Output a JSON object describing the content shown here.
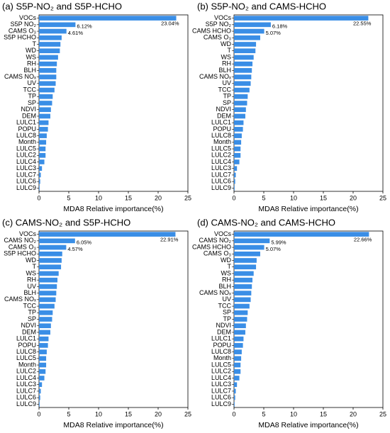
{
  "chart_data": [
    {
      "type": "bar",
      "orientation": "horizontal",
      "title": "(a) S5P-NO₂ and S5P-HCHO",
      "xlabel": "MDA8 Relative importance(%)",
      "color": "#3a8ee6",
      "categories": [
        "VOCs",
        "S5P NO₂",
        "CAMS O₃",
        "S5P HCHO",
        "T",
        "WD",
        "WS",
        "RH",
        "BLH",
        "CAMS NOₓ",
        "UV",
        "TCC",
        "TP",
        "SP",
        "NDVI",
        "DEM",
        "LULC1",
        "POPU",
        "LULC8",
        "Month",
        "LULC5",
        "LULC2",
        "LULC4",
        "LULC3",
        "LULC7",
        "LULC6",
        "LULC9"
      ],
      "values": [
        23.04,
        6.12,
        4.61,
        3.8,
        3.6,
        3.5,
        3.2,
        3.0,
        2.9,
        2.9,
        2.8,
        2.6,
        2.3,
        2.2,
        2.0,
        1.9,
        1.6,
        1.5,
        1.3,
        1.2,
        1.1,
        1.1,
        0.9,
        0.5,
        0.3,
        0.2,
        0.1
      ],
      "value_labels": [
        "23.04%",
        "6.12%",
        "4.61%",
        null,
        null,
        null,
        null,
        null,
        null,
        null,
        null,
        null,
        null,
        null,
        null,
        null,
        null,
        null,
        null,
        null,
        null,
        null,
        null,
        null,
        null,
        null,
        null
      ],
      "xlim": [
        0,
        25
      ],
      "xticks": [
        0,
        5,
        10,
        15,
        20,
        25
      ],
      "grid": false
    },
    {
      "type": "bar",
      "orientation": "horizontal",
      "title": "(b) S5P-NO₂ and CAMS-HCHO",
      "xlabel": "MDA8 Relative importance(%)",
      "color": "#3a8ee6",
      "categories": [
        "VOCs",
        "S5P NO₂",
        "CAMS HCHO",
        "CAMS O₃",
        "WD",
        "T",
        "WS",
        "RH",
        "BLH",
        "CAMS NOₓ",
        "UV",
        "TCC",
        "TP",
        "SP",
        "NDVI",
        "DEM",
        "LULC1",
        "POPU",
        "LULC8",
        "Month",
        "LULC5",
        "LULC2",
        "LULC4",
        "LULC3",
        "LULC7",
        "LULC6",
        "LULC9"
      ],
      "values": [
        22.55,
        6.18,
        5.07,
        4.4,
        3.7,
        3.6,
        3.3,
        3.1,
        3.0,
        2.9,
        2.8,
        2.6,
        2.3,
        2.2,
        2.0,
        1.9,
        1.6,
        1.5,
        1.3,
        1.2,
        1.1,
        1.1,
        0.9,
        0.5,
        0.3,
        0.2,
        0.1
      ],
      "value_labels": [
        "22.55%",
        "6.18%",
        "5.07%",
        null,
        null,
        null,
        null,
        null,
        null,
        null,
        null,
        null,
        null,
        null,
        null,
        null,
        null,
        null,
        null,
        null,
        null,
        null,
        null,
        null,
        null,
        null,
        null
      ],
      "xlim": [
        0,
        25
      ],
      "xticks": [
        0,
        5,
        10,
        15,
        20,
        25
      ],
      "grid": false
    },
    {
      "type": "bar",
      "orientation": "horizontal",
      "title": "(c) CAMS-NO₂ and S5P-HCHO",
      "xlabel": "MDA8 Relative importance(%)",
      "color": "#3a8ee6",
      "categories": [
        "VOCs",
        "CAMS NO₂",
        "CAMS O₃",
        "S5P HCHO",
        "WD",
        "T",
        "WS",
        "RH",
        "UV",
        "BLH",
        "CAMS NOₓ",
        "TCC",
        "TP",
        "SP",
        "NDVI",
        "DEM",
        "LULC1",
        "POPU",
        "LULC8",
        "LULC5",
        "Month",
        "LULC2",
        "LULC4",
        "LULC3",
        "LULC7",
        "LULC6",
        "LULC9"
      ],
      "values": [
        22.91,
        6.05,
        4.57,
        3.9,
        3.8,
        3.7,
        3.3,
        3.1,
        3.0,
        2.9,
        2.8,
        2.6,
        2.3,
        2.2,
        2.0,
        1.9,
        1.6,
        1.5,
        1.3,
        1.2,
        1.2,
        1.1,
        0.9,
        0.5,
        0.3,
        0.2,
        0.1
      ],
      "value_labels": [
        "22.91%",
        "6.05%",
        "4.57%",
        null,
        null,
        null,
        null,
        null,
        null,
        null,
        null,
        null,
        null,
        null,
        null,
        null,
        null,
        null,
        null,
        null,
        null,
        null,
        null,
        null,
        null,
        null,
        null
      ],
      "xlim": [
        0,
        25
      ],
      "xticks": [
        0,
        5,
        10,
        15,
        20,
        25
      ],
      "grid": false
    },
    {
      "type": "bar",
      "orientation": "horizontal",
      "title": "(d) CAMS-NO₂ and CAMS-HCHO",
      "xlabel": "MDA8 Relative importance(%)",
      "color": "#3a8ee6",
      "categories": [
        "VOCs",
        "CAMS NO₂",
        "CAMS HCHO",
        "CAMS O₃",
        "WD",
        "T",
        "WS",
        "RH",
        "BLH",
        "CAMS NOₓ",
        "UV",
        "TCC",
        "SP",
        "TP",
        "NDVI",
        "DEM",
        "LULC1",
        "POPU",
        "LULC8",
        "Month",
        "LULC5",
        "LULC2",
        "LULC4",
        "LULC3",
        "LULC7",
        "LULC6",
        "LULC9"
      ],
      "values": [
        22.66,
        5.99,
        5.07,
        4.4,
        3.8,
        3.7,
        3.3,
        3.1,
        3.0,
        2.9,
        2.8,
        2.6,
        2.3,
        2.2,
        2.0,
        1.9,
        1.6,
        1.5,
        1.3,
        1.2,
        1.1,
        1.1,
        0.9,
        0.5,
        0.3,
        0.2,
        0.1
      ],
      "value_labels": [
        "22.66%",
        "5.99%",
        "5.07%",
        null,
        null,
        null,
        null,
        null,
        null,
        null,
        null,
        null,
        null,
        null,
        null,
        null,
        null,
        null,
        null,
        null,
        null,
        null,
        null,
        null,
        null,
        null,
        null
      ],
      "xlim": [
        0,
        25
      ],
      "xticks": [
        0,
        5,
        10,
        15,
        20,
        25
      ],
      "grid": false
    }
  ]
}
